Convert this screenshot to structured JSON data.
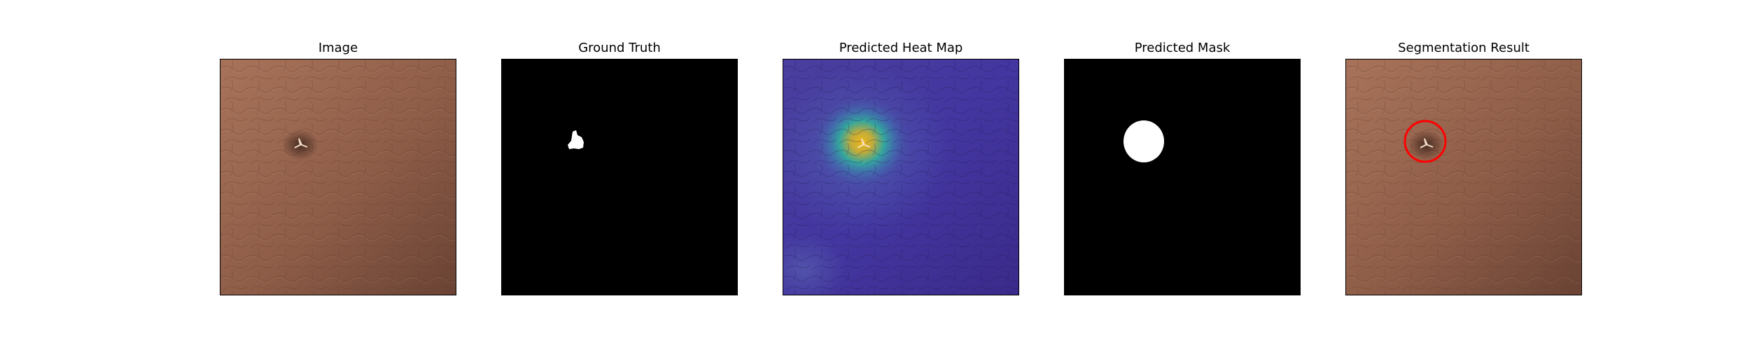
{
  "panels": [
    {
      "title": "Image"
    },
    {
      "title": "Ground Truth"
    },
    {
      "title": "Predicted Heat Map"
    },
    {
      "title": "Predicted Mask"
    },
    {
      "title": "Segmentation Result"
    }
  ],
  "colors": {
    "leather_light": "#a06d55",
    "leather_dark": "#6e4535",
    "mask_background": "#000000",
    "mask_foreground": "#ffffff",
    "heatmap_low": "#3b2f8f",
    "heatmap_mid": "#2fb0a0",
    "heatmap_high": "#e0b020",
    "detection_circle": "#ff0000"
  }
}
